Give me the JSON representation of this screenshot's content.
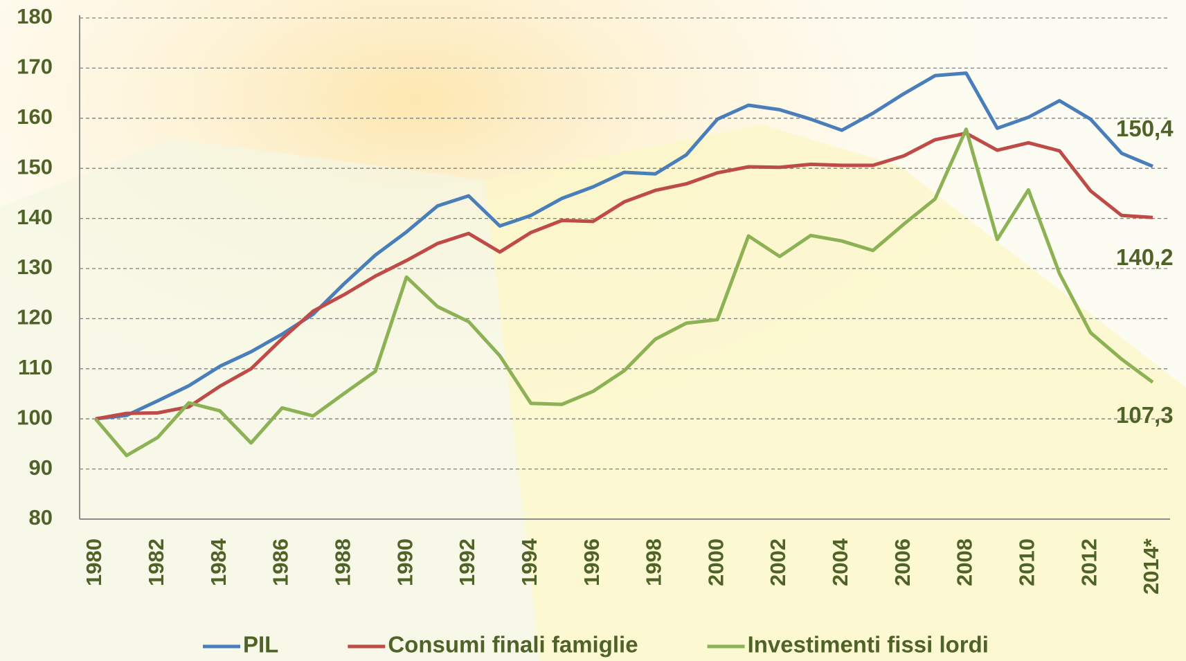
{
  "chart_data": {
    "type": "line",
    "categories": [
      "1980",
      null,
      "1982",
      null,
      "1984",
      null,
      "1986",
      null,
      "1988",
      null,
      "1990",
      null,
      "1992",
      null,
      "1994",
      null,
      "1996",
      null,
      "1998",
      null,
      "2000",
      null,
      "2002",
      null,
      "2004",
      null,
      "2006",
      null,
      "2008",
      null,
      "2010",
      null,
      "2012",
      null,
      "2014*"
    ],
    "ylim": [
      80,
      180
    ],
    "yticks": [
      80,
      90,
      100,
      110,
      120,
      130,
      140,
      150,
      160,
      170,
      180
    ],
    "grid": true,
    "legend": "bottom",
    "series": [
      {
        "name": "PIL",
        "color": "#4a7ebb",
        "values": [
          100,
          100.7,
          103.6,
          106.6,
          110.5,
          113.4,
          116.9,
          120.9,
          127,
          132.7,
          137.3,
          142.5,
          144.5,
          138.5,
          140.6,
          144,
          146.3,
          149.2,
          148.9,
          152.7,
          159.8,
          162.6,
          161.7,
          159.8,
          157.6,
          161,
          164.9,
          168.5,
          169,
          158,
          160.2,
          163.5,
          159.8,
          153,
          150.4
        ],
        "value_labels": [
          null,
          null,
          null,
          null,
          null,
          null,
          null,
          null,
          null,
          null,
          null,
          null,
          null,
          null,
          null,
          null,
          null,
          null,
          null,
          null,
          null,
          null,
          null,
          null,
          null,
          null,
          null,
          null,
          null,
          null,
          null,
          null,
          null,
          null,
          "150,4"
        ]
      },
      {
        "name": "Consumi finali famiglie",
        "color": "#be4b48",
        "values": [
          100,
          101.1,
          101.2,
          102.4,
          106.5,
          110,
          116,
          121.5,
          124.8,
          128.5,
          131.6,
          135,
          137,
          133.3,
          137.2,
          139.6,
          139.4,
          143.3,
          145.6,
          146.9,
          149.1,
          150.3,
          150.2,
          150.8,
          150.6,
          150.6,
          152.5,
          155.7,
          157,
          153.6,
          155.1,
          153.5,
          145.5,
          140.6,
          140.2
        ],
        "value_labels": [
          null,
          null,
          null,
          null,
          null,
          null,
          null,
          null,
          null,
          null,
          null,
          null,
          null,
          null,
          null,
          null,
          null,
          null,
          null,
          null,
          null,
          null,
          null,
          null,
          null,
          null,
          null,
          null,
          null,
          null,
          null,
          null,
          null,
          null,
          "140,2"
        ]
      },
      {
        "name": "Investimenti fissi lordi",
        "color": "#8db255",
        "values": [
          100,
          92.7,
          96.3,
          103.2,
          101.6,
          95.2,
          102.2,
          100.6,
          105.1,
          109.5,
          128.3,
          122.4,
          119.4,
          112.6,
          103.1,
          102.9,
          105.5,
          109.6,
          115.9,
          119.1,
          119.8,
          136.5,
          132.4,
          136.6,
          135.5,
          133.6,
          138.9,
          143.9,
          157.8,
          135.8,
          145.7,
          129,
          117.2,
          111.9,
          107.3
        ],
        "value_labels": [
          null,
          null,
          null,
          null,
          null,
          null,
          null,
          null,
          null,
          null,
          null,
          null,
          null,
          null,
          null,
          null,
          null,
          null,
          null,
          null,
          null,
          null,
          null,
          null,
          null,
          null,
          null,
          null,
          null,
          null,
          null,
          null,
          null,
          null,
          "107,3"
        ]
      }
    ]
  }
}
